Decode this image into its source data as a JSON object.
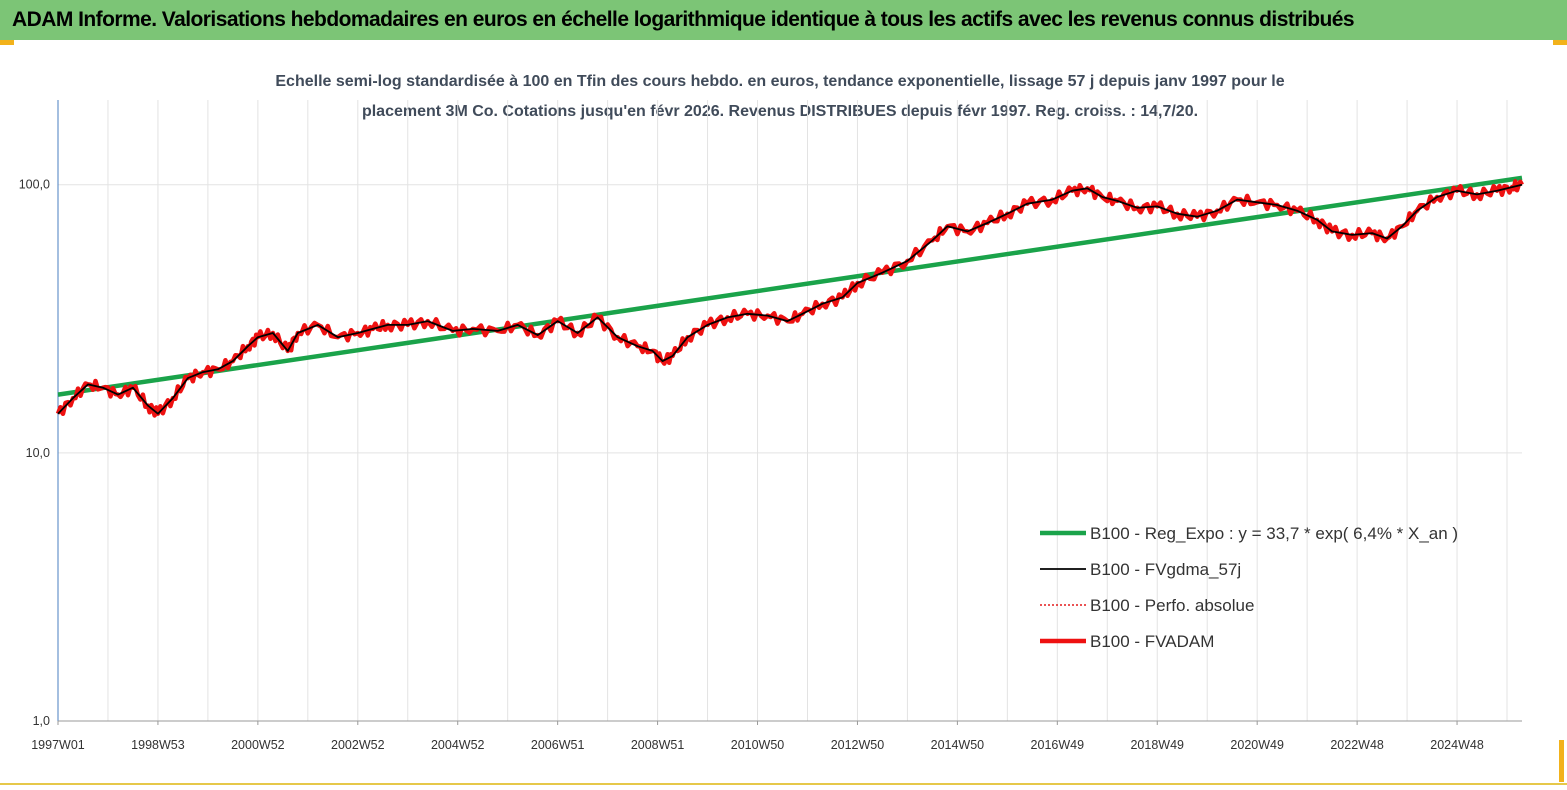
{
  "banner": {
    "title": "ADAM Informe. Valorisations hebdomadaires en euros en échelle logarithmique identique à tous les actifs avec les revenus connus distribués",
    "color": "#7cc576"
  },
  "chart_data": {
    "type": "line",
    "subtitle_line1": "Echelle semi-log standardisée à 100 en Tfin des cours hebdo. en euros, tendance exponentielle, lissage 57 j depuis janv 1997 pour le",
    "subtitle_line2": "placement 3M Co. Cotations jusqu'en févr 2026. Revenus DISTRIBUES depuis févr 1997. Reg. croiss. : 14,7/20.",
    "y_scale": "log",
    "ylim": [
      1,
      160
    ],
    "y_ticks": [
      {
        "value": 1,
        "label": "1,0"
      },
      {
        "value": 10,
        "label": "10,0"
      },
      {
        "value": 100,
        "label": "100,0"
      }
    ],
    "xlim": [
      1997.0,
      2026.3
    ],
    "x_ticks": [
      {
        "x": 1997.0,
        "label": "1997W01"
      },
      {
        "x": 1999.0,
        "label": "1998W53"
      },
      {
        "x": 2001.0,
        "label": "2000W52"
      },
      {
        "x": 2003.0,
        "label": "2002W52"
      },
      {
        "x": 2005.0,
        "label": "2004W52"
      },
      {
        "x": 2007.0,
        "label": "2006W51"
      },
      {
        "x": 2009.0,
        "label": "2008W51"
      },
      {
        "x": 2011.0,
        "label": "2010W50"
      },
      {
        "x": 2013.0,
        "label": "2012W50"
      },
      {
        "x": 2015.0,
        "label": "2014W50"
      },
      {
        "x": 2017.0,
        "label": "2016W49"
      },
      {
        "x": 2019.0,
        "label": "2018W49"
      },
      {
        "x": 2021.0,
        "label": "2020W49"
      },
      {
        "x": 2023.0,
        "label": "2022W48"
      },
      {
        "x": 2025.0,
        "label": "2024W48"
      }
    ],
    "grid": "vertical",
    "legend_position": "bottom-right",
    "series": [
      {
        "name": "B100 - Reg_Expo : y = 33,7 * exp( 6,4% *  X_an )",
        "color": "#1aa34a",
        "style": "thick",
        "x": [
          1997.0,
          2026.3
        ],
        "y": [
          16.5,
          106
        ]
      },
      {
        "name": "B100 - FVgdma_57j",
        "color": "#000000",
        "style": "thin",
        "x": [
          1997.0,
          1997.3,
          1997.6,
          1997.9,
          1998.2,
          1998.5,
          1998.8,
          1999.0,
          1999.3,
          1999.6,
          1999.9,
          2000.2,
          2000.5,
          2000.8,
          2001.0,
          2001.3,
          2001.6,
          2001.8,
          2002.2,
          2002.6,
          2003.0,
          2003.3,
          2003.6,
          2004.0,
          2004.4,
          2004.9,
          2005.3,
          2005.8,
          2006.2,
          2006.6,
          2007.0,
          2007.4,
          2007.8,
          2008.2,
          2008.6,
          2008.9,
          2009.1,
          2009.3,
          2009.6,
          2010.0,
          2010.4,
          2010.8,
          2011.2,
          2011.6,
          2011.9,
          2012.3,
          2012.7,
          2013.0,
          2013.5,
          2014.0,
          2014.5,
          2014.8,
          2015.2,
          2015.6,
          2016.0,
          2016.4,
          2016.9,
          2017.3,
          2017.6,
          2017.9,
          2018.2,
          2018.6,
          2019.0,
          2019.4,
          2019.8,
          2020.2,
          2020.6,
          2021.0,
          2021.4,
          2021.8,
          2022.2,
          2022.5,
          2022.9,
          2023.3,
          2023.6,
          2023.9,
          2024.2,
          2024.6,
          2025.0,
          2025.4,
          2025.8,
          2026.1,
          2026.3
        ],
        "y": [
          14,
          16,
          18,
          17.5,
          16.5,
          17.5,
          15,
          14,
          16,
          19,
          20,
          20.5,
          22,
          25,
          27,
          28,
          24,
          28,
          30,
          27,
          28,
          29,
          30,
          30,
          31,
          28.5,
          29,
          28.5,
          30,
          27.5,
          31,
          28,
          32,
          27,
          25,
          24,
          22,
          23,
          27,
          30,
          32,
          33,
          32.5,
          31,
          33,
          36,
          38,
          43,
          47,
          52,
          62,
          70,
          67,
          72,
          78,
          85,
          88,
          95,
          97,
          90,
          87,
          82,
          83,
          78,
          76,
          80,
          88,
          86,
          84,
          80,
          74,
          67,
          65,
          66,
          63,
          70,
          80,
          90,
          95,
          92,
          95,
          98,
          100
        ]
      },
      {
        "name": "B100 - Perfo. absolue",
        "color": "#e31a1c",
        "style": "dotted",
        "x": [
          1997.0,
          1997.3,
          1997.6,
          1997.9,
          1998.2,
          1998.5,
          1998.8,
          1999.0,
          1999.3,
          1999.6,
          1999.9,
          2000.2,
          2000.5,
          2000.8,
          2001.0,
          2001.3,
          2001.6,
          2001.8,
          2002.2,
          2002.6,
          2003.0,
          2003.3,
          2003.6,
          2004.0,
          2004.4,
          2004.9,
          2005.3,
          2005.8,
          2006.2,
          2006.6,
          2007.0,
          2007.4,
          2007.8,
          2008.2,
          2008.6,
          2008.9,
          2009.1,
          2009.3,
          2009.6,
          2010.0,
          2010.4,
          2010.8,
          2011.2,
          2011.6,
          2011.9,
          2012.3,
          2012.7,
          2013.0,
          2013.5,
          2014.0,
          2014.5,
          2014.8,
          2015.2,
          2015.6,
          2016.0,
          2016.4,
          2016.9,
          2017.3,
          2017.6,
          2017.9,
          2018.2,
          2018.6,
          2019.0,
          2019.4,
          2019.8,
          2020.2,
          2020.6,
          2021.0,
          2021.4,
          2021.8,
          2022.2,
          2022.5,
          2022.9,
          2023.3,
          2023.6,
          2023.9,
          2024.2,
          2024.6,
          2025.0,
          2025.4,
          2025.8,
          2026.1,
          2026.3
        ],
        "y": [
          14,
          16,
          18,
          17.5,
          16.5,
          17.5,
          15,
          14,
          16,
          19,
          20,
          20.5,
          22,
          25,
          27,
          28,
          24,
          28,
          30,
          27,
          28,
          29,
          30,
          30,
          31,
          28.5,
          29,
          28.5,
          30,
          27.5,
          31,
          28,
          32,
          27,
          25,
          24,
          22,
          23,
          27,
          30,
          32,
          33,
          32.5,
          31,
          33,
          36,
          38,
          43,
          47,
          52,
          62,
          70,
          67,
          72,
          78,
          85,
          88,
          95,
          97,
          90,
          87,
          82,
          83,
          78,
          76,
          80,
          88,
          86,
          84,
          80,
          74,
          67,
          65,
          66,
          63,
          70,
          80,
          90,
          95,
          92,
          95,
          98,
          100
        ]
      },
      {
        "name": "B100 - FVADAM",
        "color": "#ee1111",
        "style": "thick",
        "x": [
          1997.0,
          1997.3,
          1997.6,
          1997.9,
          1998.2,
          1998.5,
          1998.8,
          1999.0,
          1999.3,
          1999.6,
          1999.9,
          2000.2,
          2000.5,
          2000.8,
          2001.0,
          2001.3,
          2001.6,
          2001.8,
          2002.2,
          2002.6,
          2003.0,
          2003.3,
          2003.6,
          2004.0,
          2004.4,
          2004.9,
          2005.3,
          2005.8,
          2006.2,
          2006.6,
          2007.0,
          2007.4,
          2007.8,
          2008.2,
          2008.6,
          2008.9,
          2009.1,
          2009.3,
          2009.6,
          2010.0,
          2010.4,
          2010.8,
          2011.2,
          2011.6,
          2011.9,
          2012.3,
          2012.7,
          2013.0,
          2013.5,
          2014.0,
          2014.5,
          2014.8,
          2015.2,
          2015.6,
          2016.0,
          2016.4,
          2016.9,
          2017.3,
          2017.6,
          2017.9,
          2018.2,
          2018.6,
          2019.0,
          2019.4,
          2019.8,
          2020.2,
          2020.6,
          2021.0,
          2021.4,
          2021.8,
          2022.2,
          2022.5,
          2022.9,
          2023.3,
          2023.6,
          2023.9,
          2024.2,
          2024.6,
          2025.0,
          2025.4,
          2025.8,
          2026.1,
          2026.3
        ],
        "y": [
          14,
          16,
          18,
          17.5,
          16.5,
          17.5,
          15,
          14,
          16,
          19,
          20,
          20.5,
          22,
          25,
          27,
          28,
          24,
          28,
          30,
          27,
          28,
          29,
          30,
          30,
          31,
          28.5,
          29,
          28.5,
          30,
          27.5,
          31,
          28,
          32,
          27,
          25,
          24,
          22,
          23,
          27,
          30,
          32,
          33,
          32.5,
          31,
          33,
          36,
          38,
          43,
          47,
          52,
          62,
          70,
          67,
          72,
          78,
          85,
          88,
          95,
          97,
          90,
          87,
          82,
          83,
          78,
          76,
          80,
          88,
          86,
          84,
          80,
          74,
          67,
          65,
          66,
          63,
          70,
          80,
          90,
          95,
          92,
          95,
          98,
          100
        ]
      }
    ]
  }
}
